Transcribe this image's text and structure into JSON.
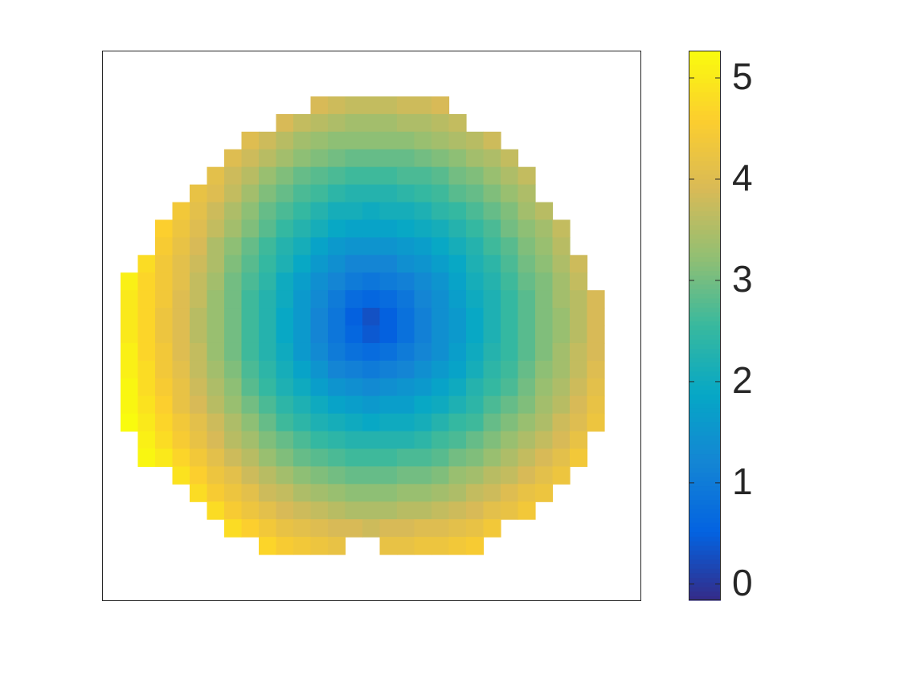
{
  "chart_data": {
    "type": "heatmap",
    "colormap": "parula",
    "clim": [
      -0.16,
      5.27
    ],
    "cticks": [
      0,
      1,
      2,
      3,
      4,
      5
    ],
    "z": [
      [
        null,
        null,
        null,
        null,
        null,
        null,
        null,
        null,
        null,
        null,
        null,
        3.9,
        3.8,
        3.7,
        3.7,
        3.7,
        3.8,
        3.8,
        3.9,
        null,
        null,
        null,
        null,
        null,
        null,
        null,
        null,
        null
      ],
      [
        null,
        null,
        null,
        null,
        null,
        null,
        null,
        null,
        null,
        3.9,
        3.7,
        3.6,
        3.5,
        3.4,
        3.4,
        3.4,
        3.5,
        3.5,
        3.6,
        3.7,
        null,
        null,
        null,
        null,
        null,
        null,
        null,
        null
      ],
      [
        null,
        null,
        null,
        null,
        null,
        null,
        null,
        4.0,
        3.8,
        3.6,
        3.4,
        3.3,
        3.2,
        3.2,
        3.2,
        3.2,
        3.2,
        3.3,
        3.4,
        3.5,
        3.6,
        3.8,
        null,
        null,
        null,
        null,
        null,
        null
      ],
      [
        null,
        null,
        null,
        null,
        null,
        null,
        4.0,
        3.8,
        3.6,
        3.4,
        3.2,
        3.1,
        3.0,
        2.9,
        2.9,
        2.9,
        2.9,
        3.0,
        3.1,
        3.2,
        3.4,
        3.5,
        3.7,
        null,
        null,
        null,
        null,
        null
      ],
      [
        null,
        null,
        null,
        null,
        null,
        4.1,
        3.8,
        3.6,
        3.3,
        3.1,
        2.9,
        2.8,
        2.7,
        2.6,
        2.6,
        2.6,
        2.7,
        2.7,
        2.8,
        3.0,
        3.1,
        3.3,
        3.5,
        3.7,
        null,
        null,
        null,
        null
      ],
      [
        null,
        null,
        null,
        null,
        4.2,
        4.0,
        3.7,
        3.4,
        3.1,
        2.9,
        2.7,
        2.6,
        2.4,
        2.3,
        2.3,
        2.3,
        2.4,
        2.5,
        2.6,
        2.8,
        2.9,
        3.1,
        3.3,
        3.5,
        null,
        null,
        null,
        null
      ],
      [
        null,
        null,
        null,
        4.4,
        4.1,
        3.8,
        3.5,
        3.2,
        2.9,
        2.7,
        2.5,
        2.3,
        2.1,
        2.1,
        2.0,
        2.1,
        2.1,
        2.2,
        2.4,
        2.5,
        2.7,
        2.9,
        3.1,
        3.4,
        3.6,
        null,
        null,
        null
      ],
      [
        null,
        null,
        4.6,
        4.3,
        4.0,
        3.7,
        3.4,
        3.1,
        2.8,
        2.5,
        2.3,
        2.1,
        1.9,
        1.8,
        1.8,
        1.8,
        1.9,
        2.0,
        2.1,
        2.3,
        2.5,
        2.7,
        3.0,
        3.2,
        3.4,
        3.7,
        null,
        null
      ],
      [
        null,
        null,
        4.5,
        4.2,
        3.9,
        3.5,
        3.2,
        2.9,
        2.6,
        2.3,
        2.1,
        1.8,
        1.6,
        1.5,
        1.5,
        1.5,
        1.6,
        1.7,
        1.9,
        2.1,
        2.3,
        2.6,
        2.8,
        3.1,
        3.3,
        3.6,
        null,
        null
      ],
      [
        null,
        4.8,
        4.4,
        4.1,
        3.8,
        3.5,
        3.1,
        2.8,
        2.5,
        2.2,
        1.9,
        1.6,
        1.4,
        1.2,
        1.2,
        1.2,
        1.4,
        1.5,
        1.7,
        1.9,
        2.2,
        2.4,
        2.7,
        3.0,
        3.2,
        3.5,
        3.8,
        null
      ],
      [
        5.1,
        4.7,
        4.4,
        4.1,
        3.7,
        3.4,
        3.0,
        2.7,
        2.4,
        2.0,
        1.7,
        1.4,
        1.2,
        1.0,
        0.9,
        1.0,
        1.1,
        1.3,
        1.5,
        1.8,
        2.1,
        2.3,
        2.6,
        2.9,
        3.1,
        3.4,
        3.7,
        null
      ],
      [
        5.0,
        4.7,
        4.4,
        4.0,
        3.7,
        3.3,
        3.0,
        2.6,
        2.3,
        2.0,
        1.6,
        1.3,
        1.0,
        0.7,
        0.6,
        0.7,
        0.9,
        1.2,
        1.4,
        1.7,
        2.0,
        2.2,
        2.5,
        2.8,
        3.1,
        3.4,
        3.6,
        3.9
      ],
      [
        5.0,
        4.7,
        4.3,
        4.0,
        3.6,
        3.3,
        3.0,
        2.6,
        2.3,
        1.9,
        1.6,
        1.2,
        0.9,
        0.5,
        0.3,
        0.5,
        0.8,
        1.1,
        1.4,
        1.6,
        1.9,
        2.2,
        2.5,
        2.8,
        3.1,
        3.3,
        3.6,
        3.9
      ],
      [
        5.0,
        4.7,
        4.3,
        4.0,
        3.6,
        3.3,
        3.0,
        2.6,
        2.3,
        1.9,
        1.6,
        1.2,
        0.9,
        0.6,
        0.4,
        0.5,
        0.8,
        1.1,
        1.4,
        1.6,
        1.9,
        2.2,
        2.5,
        2.8,
        3.1,
        3.3,
        3.6,
        3.9
      ],
      [
        5.1,
        4.7,
        4.4,
        4.0,
        3.7,
        3.3,
        3.0,
        2.6,
        2.3,
        2.0,
        1.6,
        1.3,
        1.0,
        0.8,
        0.7,
        0.8,
        1.0,
        1.2,
        1.4,
        1.7,
        2.0,
        2.3,
        2.5,
        2.8,
        3.1,
        3.4,
        3.7,
        3.9
      ],
      [
        5.1,
        4.8,
        4.4,
        4.1,
        3.7,
        3.4,
        3.1,
        2.7,
        2.4,
        2.1,
        1.8,
        1.5,
        1.2,
        1.1,
        1.0,
        1.1,
        1.2,
        1.4,
        1.6,
        1.8,
        2.1,
        2.4,
        2.6,
        2.9,
        3.2,
        3.4,
        3.7,
        4.0
      ],
      [
        5.2,
        4.8,
        4.5,
        4.2,
        3.8,
        3.5,
        3.2,
        2.8,
        2.5,
        2.2,
        2.0,
        1.7,
        1.5,
        1.4,
        1.3,
        1.4,
        1.5,
        1.6,
        1.8,
        2.0,
        2.3,
        2.5,
        2.7,
        3.0,
        3.3,
        3.5,
        3.8,
        4.1
      ],
      [
        5.2,
        4.9,
        4.6,
        4.2,
        3.9,
        3.6,
        3.3,
        3.0,
        2.7,
        2.4,
        2.2,
        2.0,
        1.8,
        1.7,
        1.6,
        1.7,
        1.7,
        1.9,
        2.0,
        2.2,
        2.4,
        2.7,
        2.9,
        3.1,
        3.4,
        3.6,
        3.9,
        4.2
      ],
      [
        5.3,
        5.0,
        4.7,
        4.4,
        4.1,
        3.8,
        3.5,
        3.2,
        2.9,
        2.6,
        2.4,
        2.2,
        2.1,
        2.0,
        1.9,
        2.0,
        2.0,
        2.1,
        2.3,
        2.5,
        2.6,
        2.9,
        3.1,
        3.3,
        3.5,
        3.8,
        4.0,
        4.3
      ],
      [
        null,
        5.1,
        4.8,
        4.5,
        4.2,
        3.9,
        3.6,
        3.4,
        3.1,
        2.9,
        2.7,
        2.5,
        2.4,
        2.3,
        2.3,
        2.3,
        2.3,
        2.4,
        2.6,
        2.7,
        2.9,
        3.1,
        3.3,
        3.5,
        3.7,
        3.9,
        4.2,
        null
      ],
      [
        null,
        5.2,
        5.0,
        4.7,
        4.4,
        4.1,
        3.8,
        3.6,
        3.3,
        3.1,
        2.9,
        2.8,
        2.7,
        2.6,
        2.6,
        2.6,
        2.7,
        2.7,
        2.8,
        3.0,
        3.1,
        3.3,
        3.5,
        3.7,
        3.9,
        4.1,
        4.4,
        null
      ],
      [
        null,
        null,
        null,
        4.9,
        4.6,
        4.3,
        4.1,
        3.8,
        3.6,
        3.4,
        3.2,
        3.1,
        3.0,
        2.9,
        2.9,
        2.9,
        3.0,
        3.0,
        3.1,
        3.3,
        3.4,
        3.6,
        3.7,
        3.9,
        4.1,
        4.3,
        null,
        null
      ],
      [
        null,
        null,
        null,
        null,
        4.8,
        4.5,
        4.3,
        4.1,
        3.8,
        3.7,
        3.5,
        3.4,
        3.3,
        3.2,
        3.2,
        3.2,
        3.3,
        3.3,
        3.4,
        3.5,
        3.7,
        3.8,
        4.0,
        4.2,
        4.3,
        null,
        null,
        null
      ],
      [
        null,
        null,
        null,
        null,
        null,
        4.8,
        4.5,
        4.3,
        4.1,
        3.9,
        3.8,
        3.7,
        3.6,
        3.5,
        3.5,
        3.5,
        3.6,
        3.6,
        3.7,
        3.8,
        3.9,
        4.1,
        4.2,
        4.4,
        null,
        null,
        null,
        null
      ],
      [
        null,
        null,
        null,
        null,
        null,
        null,
        4.8,
        4.6,
        4.4,
        4.2,
        4.1,
        4.0,
        3.9,
        3.9,
        3.8,
        3.9,
        3.9,
        4.0,
        4.0,
        4.1,
        4.2,
        4.4,
        null,
        null,
        null,
        null,
        null,
        null
      ],
      [
        null,
        null,
        null,
        null,
        null,
        null,
        null,
        null,
        4.7,
        4.5,
        4.4,
        4.3,
        4.2,
        null,
        null,
        4.2,
        4.2,
        4.3,
        4.3,
        4.4,
        4.5,
        null,
        null,
        null,
        null,
        null,
        null,
        null
      ]
    ]
  }
}
